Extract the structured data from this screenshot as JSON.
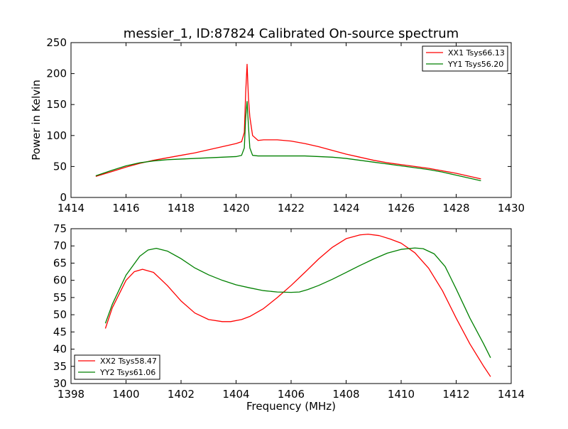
{
  "chart_data": [
    {
      "type": "line",
      "title": "messier_1, ID:87824 Calibrated On-source spectrum",
      "xlabel": "",
      "ylabel": "Power in Kelvin",
      "xlim": [
        1414,
        1430
      ],
      "ylim": [
        0,
        250
      ],
      "xticks": [
        1414,
        1416,
        1418,
        1420,
        1422,
        1424,
        1426,
        1428,
        1430
      ],
      "yticks": [
        0,
        50,
        100,
        150,
        200,
        250
      ],
      "legend_position": "top-right",
      "grid": false,
      "series": [
        {
          "name": "XX1 Tsys66.13",
          "color": "#ff0000",
          "x": [
            1414.9,
            1415.5,
            1416.0,
            1416.5,
            1417.0,
            1417.5,
            1418.0,
            1418.5,
            1419.0,
            1419.5,
            1420.0,
            1420.2,
            1420.3,
            1420.35,
            1420.4,
            1420.45,
            1420.5,
            1420.6,
            1420.8,
            1421.0,
            1421.5,
            1422.0,
            1422.5,
            1423.0,
            1423.5,
            1424.0,
            1424.5,
            1425.0,
            1425.5,
            1426.0,
            1426.5,
            1427.0,
            1427.5,
            1428.0,
            1428.5,
            1428.9
          ],
          "y": [
            34,
            42,
            49,
            55,
            60,
            64,
            68,
            72,
            77,
            82,
            87,
            90,
            105,
            170,
            215,
            160,
            130,
            100,
            92,
            93,
            93,
            91,
            87,
            82,
            76,
            70,
            65,
            60,
            56,
            53,
            50,
            47,
            43,
            39,
            34,
            30
          ]
        },
        {
          "name": "YY1 Tsys56.20",
          "color": "#008000",
          "x": [
            1414.9,
            1415.5,
            1416.0,
            1416.5,
            1417.0,
            1417.5,
            1418.0,
            1418.5,
            1419.0,
            1419.5,
            1420.0,
            1420.2,
            1420.3,
            1420.35,
            1420.4,
            1420.45,
            1420.5,
            1420.6,
            1420.8,
            1421.0,
            1421.5,
            1422.0,
            1422.5,
            1423.0,
            1423.5,
            1424.0,
            1424.5,
            1425.0,
            1425.5,
            1426.0,
            1426.5,
            1427.0,
            1427.5,
            1428.0,
            1428.5,
            1428.9
          ],
          "y": [
            35,
            44,
            51,
            56,
            59,
            61,
            62,
            63,
            64,
            65,
            66,
            68,
            80,
            130,
            155,
            115,
            80,
            68,
            67,
            67,
            67,
            67,
            67,
            66,
            65,
            63,
            60,
            57,
            54,
            51,
            48,
            45,
            41,
            36,
            31,
            27
          ]
        }
      ]
    },
    {
      "type": "line",
      "title": "",
      "xlabel": "Frequency (MHz)",
      "ylabel": "",
      "xlim": [
        1398,
        1414
      ],
      "ylim": [
        30,
        75
      ],
      "xticks": [
        1398,
        1400,
        1402,
        1404,
        1406,
        1408,
        1410,
        1412,
        1414
      ],
      "yticks": [
        30,
        35,
        40,
        45,
        50,
        55,
        60,
        65,
        70,
        75
      ],
      "legend_position": "bottom-left",
      "grid": false,
      "series": [
        {
          "name": "XX2 Tsys58.47",
          "color": "#ff0000",
          "x": [
            1399.25,
            1399.5,
            1400.0,
            1400.3,
            1400.6,
            1401.0,
            1401.5,
            1402.0,
            1402.5,
            1403.0,
            1403.5,
            1403.8,
            1404.2,
            1404.5,
            1405.0,
            1405.5,
            1406.0,
            1406.5,
            1407.0,
            1407.5,
            1408.0,
            1408.5,
            1408.8,
            1409.2,
            1409.6,
            1410.0,
            1410.5,
            1411.0,
            1411.5,
            1412.0,
            1412.5,
            1413.0,
            1413.25
          ],
          "y": [
            46,
            52,
            60,
            62.5,
            63.2,
            62.3,
            58.5,
            54,
            50.5,
            48.6,
            48.0,
            48.0,
            48.6,
            49.5,
            51.8,
            55.0,
            58.5,
            62.3,
            66.2,
            69.6,
            72.1,
            73.2,
            73.4,
            73.0,
            72.0,
            70.8,
            68.0,
            63.5,
            57.0,
            49.0,
            41.5,
            35.0,
            32.0
          ]
        },
        {
          "name": "YY2 Tsys61.06",
          "color": "#008000",
          "x": [
            1399.25,
            1399.5,
            1400.0,
            1400.5,
            1400.8,
            1401.1,
            1401.5,
            1402.0,
            1402.5,
            1403.0,
            1403.5,
            1404.0,
            1404.5,
            1405.0,
            1405.5,
            1406.0,
            1406.3,
            1406.6,
            1407.0,
            1407.5,
            1408.0,
            1408.5,
            1409.0,
            1409.5,
            1410.0,
            1410.5,
            1410.8,
            1411.2,
            1411.6,
            1412.0,
            1412.5,
            1413.0,
            1413.25
          ],
          "y": [
            47.5,
            53,
            61.5,
            67,
            68.8,
            69.3,
            68.5,
            66.3,
            63.6,
            61.6,
            60.0,
            58.7,
            57.8,
            57.0,
            56.6,
            56.5,
            56.6,
            57.3,
            58.5,
            60.3,
            62.3,
            64.3,
            66.2,
            67.9,
            69.0,
            69.4,
            69.2,
            67.7,
            64.0,
            57.5,
            49.0,
            41.5,
            37.5
          ]
        }
      ]
    }
  ]
}
